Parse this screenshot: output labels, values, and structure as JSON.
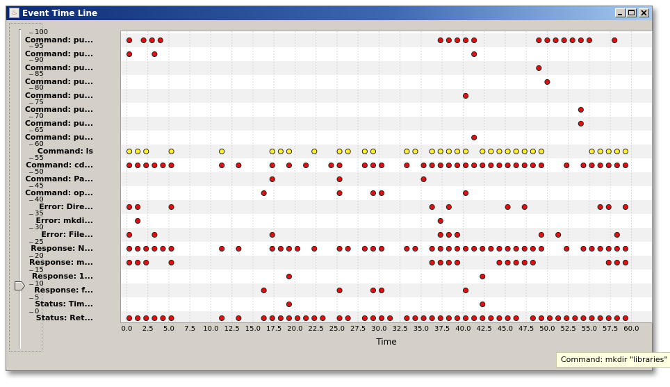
{
  "window": {
    "title": "Event Time Line"
  },
  "slider": {
    "labels": [
      "100",
      "95",
      "90",
      "85",
      "80",
      "75",
      "70",
      "65",
      "60",
      "55",
      "50",
      "45",
      "40",
      "35",
      "30",
      "25",
      "20",
      "15",
      "10",
      "5",
      "0"
    ],
    "value": 10
  },
  "chart_data": {
    "type": "scatter",
    "xlabel": "Time",
    "xlim": [
      -0.2,
      62
    ],
    "xticks": [
      "0.0",
      "2.5",
      "5.0",
      "7.5",
      "10.0",
      "12.5",
      "15.0",
      "17.5",
      "20.0",
      "22.5",
      "25.0",
      "27.5",
      "30.0",
      "32.5",
      "35.0",
      "37.5",
      "40.0",
      "42.5",
      "45.0",
      "47.5",
      "50.0",
      "52.5",
      "55.0",
      "57.5",
      "60.0"
    ],
    "colors": {
      "event": "#dd1111",
      "highlight": "#ffee33",
      "outline": "#222222"
    },
    "rows": [
      {
        "label": "Command: pu...",
        "x": [
          0.3,
          2,
          3,
          4,
          37.3,
          38.3,
          39.3,
          40.3,
          41.3,
          49,
          50,
          51,
          52,
          53,
          54,
          55,
          58
        ]
      },
      {
        "label": "Command: pu...",
        "x": [
          0.3,
          3.3,
          41.3
        ]
      },
      {
        "label": "Command: pu...",
        "x": [
          49
        ]
      },
      {
        "label": "Command: pu...",
        "x": [
          50
        ]
      },
      {
        "label": "Command: pu...",
        "x": [
          40.3
        ]
      },
      {
        "label": "Command: pu...",
        "x": [
          54
        ]
      },
      {
        "label": "Command: pu...",
        "x": [
          54
        ]
      },
      {
        "label": "Command: pu...",
        "x": [
          41.3
        ]
      },
      {
        "label": "Command: ls",
        "highlight": true,
        "x": [
          0.3,
          1.3,
          2.3,
          5.3,
          11.3,
          17.3,
          18.3,
          19.3,
          22.3,
          25.3,
          26.3,
          28.3,
          29.3,
          33.3,
          34.3,
          36.3,
          37.3,
          38.3,
          39.3,
          40.3,
          42.3,
          43.3,
          44.3,
          45.3,
          46.3,
          47.3,
          48.3,
          49.3,
          55.3,
          56.3,
          57.3,
          58.3,
          59.3
        ]
      },
      {
        "label": "Command: cd...",
        "x": [
          0.3,
          1.3,
          2.3,
          3.3,
          4.3,
          5.3,
          11.3,
          13.3,
          17.3,
          19.3,
          21.3,
          24.3,
          25.3,
          28.3,
          29.3,
          30.3,
          33.3,
          35.3,
          36.3,
          37.3,
          38.3,
          39.3,
          40.3,
          41.3,
          42.3,
          43.3,
          44.3,
          45.3,
          46.3,
          47.3,
          48.3,
          49.3,
          52.3,
          54.3,
          55.3,
          56.3,
          57.3,
          58.3,
          59.3
        ]
      },
      {
        "label": "Command: Pa...",
        "x": [
          17.3,
          25.3,
          35.3
        ]
      },
      {
        "label": "Command: op...",
        "x": [
          16.3,
          25.3,
          29.3,
          30.3,
          40.3
        ]
      },
      {
        "label": "Error: Dire...",
        "x": [
          0.3,
          1.3,
          5.3,
          36.3,
          38.3,
          45.3,
          47.3,
          56.3,
          57.3,
          59.3
        ]
      },
      {
        "label": "Error: mkdi...",
        "x": [
          1.3,
          37.3
        ]
      },
      {
        "label": "Error: File...",
        "x": [
          0.3,
          3.3,
          17.3,
          37.3,
          38.3,
          39.3,
          49.3,
          51.3,
          58.3
        ]
      },
      {
        "label": "Response: N...",
        "x": [
          0.3,
          1.3,
          2.3,
          3.3,
          4.3,
          5.3,
          11.3,
          13.3,
          17.3,
          18.3,
          19.3,
          20.3,
          22.3,
          25.3,
          26.3,
          28.3,
          29.3,
          30.3,
          33.3,
          34.3,
          36.3,
          37.3,
          38.3,
          39.3,
          40.3,
          41.3,
          42.3,
          43.3,
          44.3,
          45.3,
          46.3,
          47.3,
          48.3,
          49.3,
          52.3,
          54.3,
          55.3,
          56.3,
          57.3,
          58.3,
          59.3
        ]
      },
      {
        "label": "Response: m...",
        "x": [
          0.3,
          1.3,
          2.3,
          5.3,
          36.3,
          37.3,
          38.3,
          39.3,
          44.3,
          45.3,
          46.3,
          47.3,
          48.3,
          57.3,
          58.3,
          59.3
        ]
      },
      {
        "label": "Response: 1...",
        "x": [
          19.3,
          42.3
        ]
      },
      {
        "label": "Response: f...",
        "x": [
          16.3,
          25.3,
          29.3,
          30.3,
          40.3
        ]
      },
      {
        "label": "Status: Tim...",
        "x": [
          19.3,
          42.3
        ]
      },
      {
        "label": "Status: Ret...",
        "x": [
          0.3,
          1.3,
          2.3,
          3.3,
          4.3,
          5.3,
          11.3,
          13.3,
          16.3,
          17.3,
          18.3,
          19.3,
          20.3,
          21.3,
          22.3,
          23.3,
          25.3,
          26.3,
          28.3,
          29.3,
          30.3,
          31.3,
          33.3,
          34.3,
          35.3,
          36.3,
          37.3,
          38.3,
          39.3,
          40.3,
          41.3,
          42.3,
          43.3,
          44.3,
          45.3,
          46.3,
          48.3,
          49.3,
          50.3,
          51.3,
          52.3,
          53.3,
          54.3,
          55.3,
          56.3,
          57.3,
          58.3,
          59.3
        ]
      }
    ]
  },
  "tooltip": {
    "text": "Command: mkdir \"libraries\""
  }
}
